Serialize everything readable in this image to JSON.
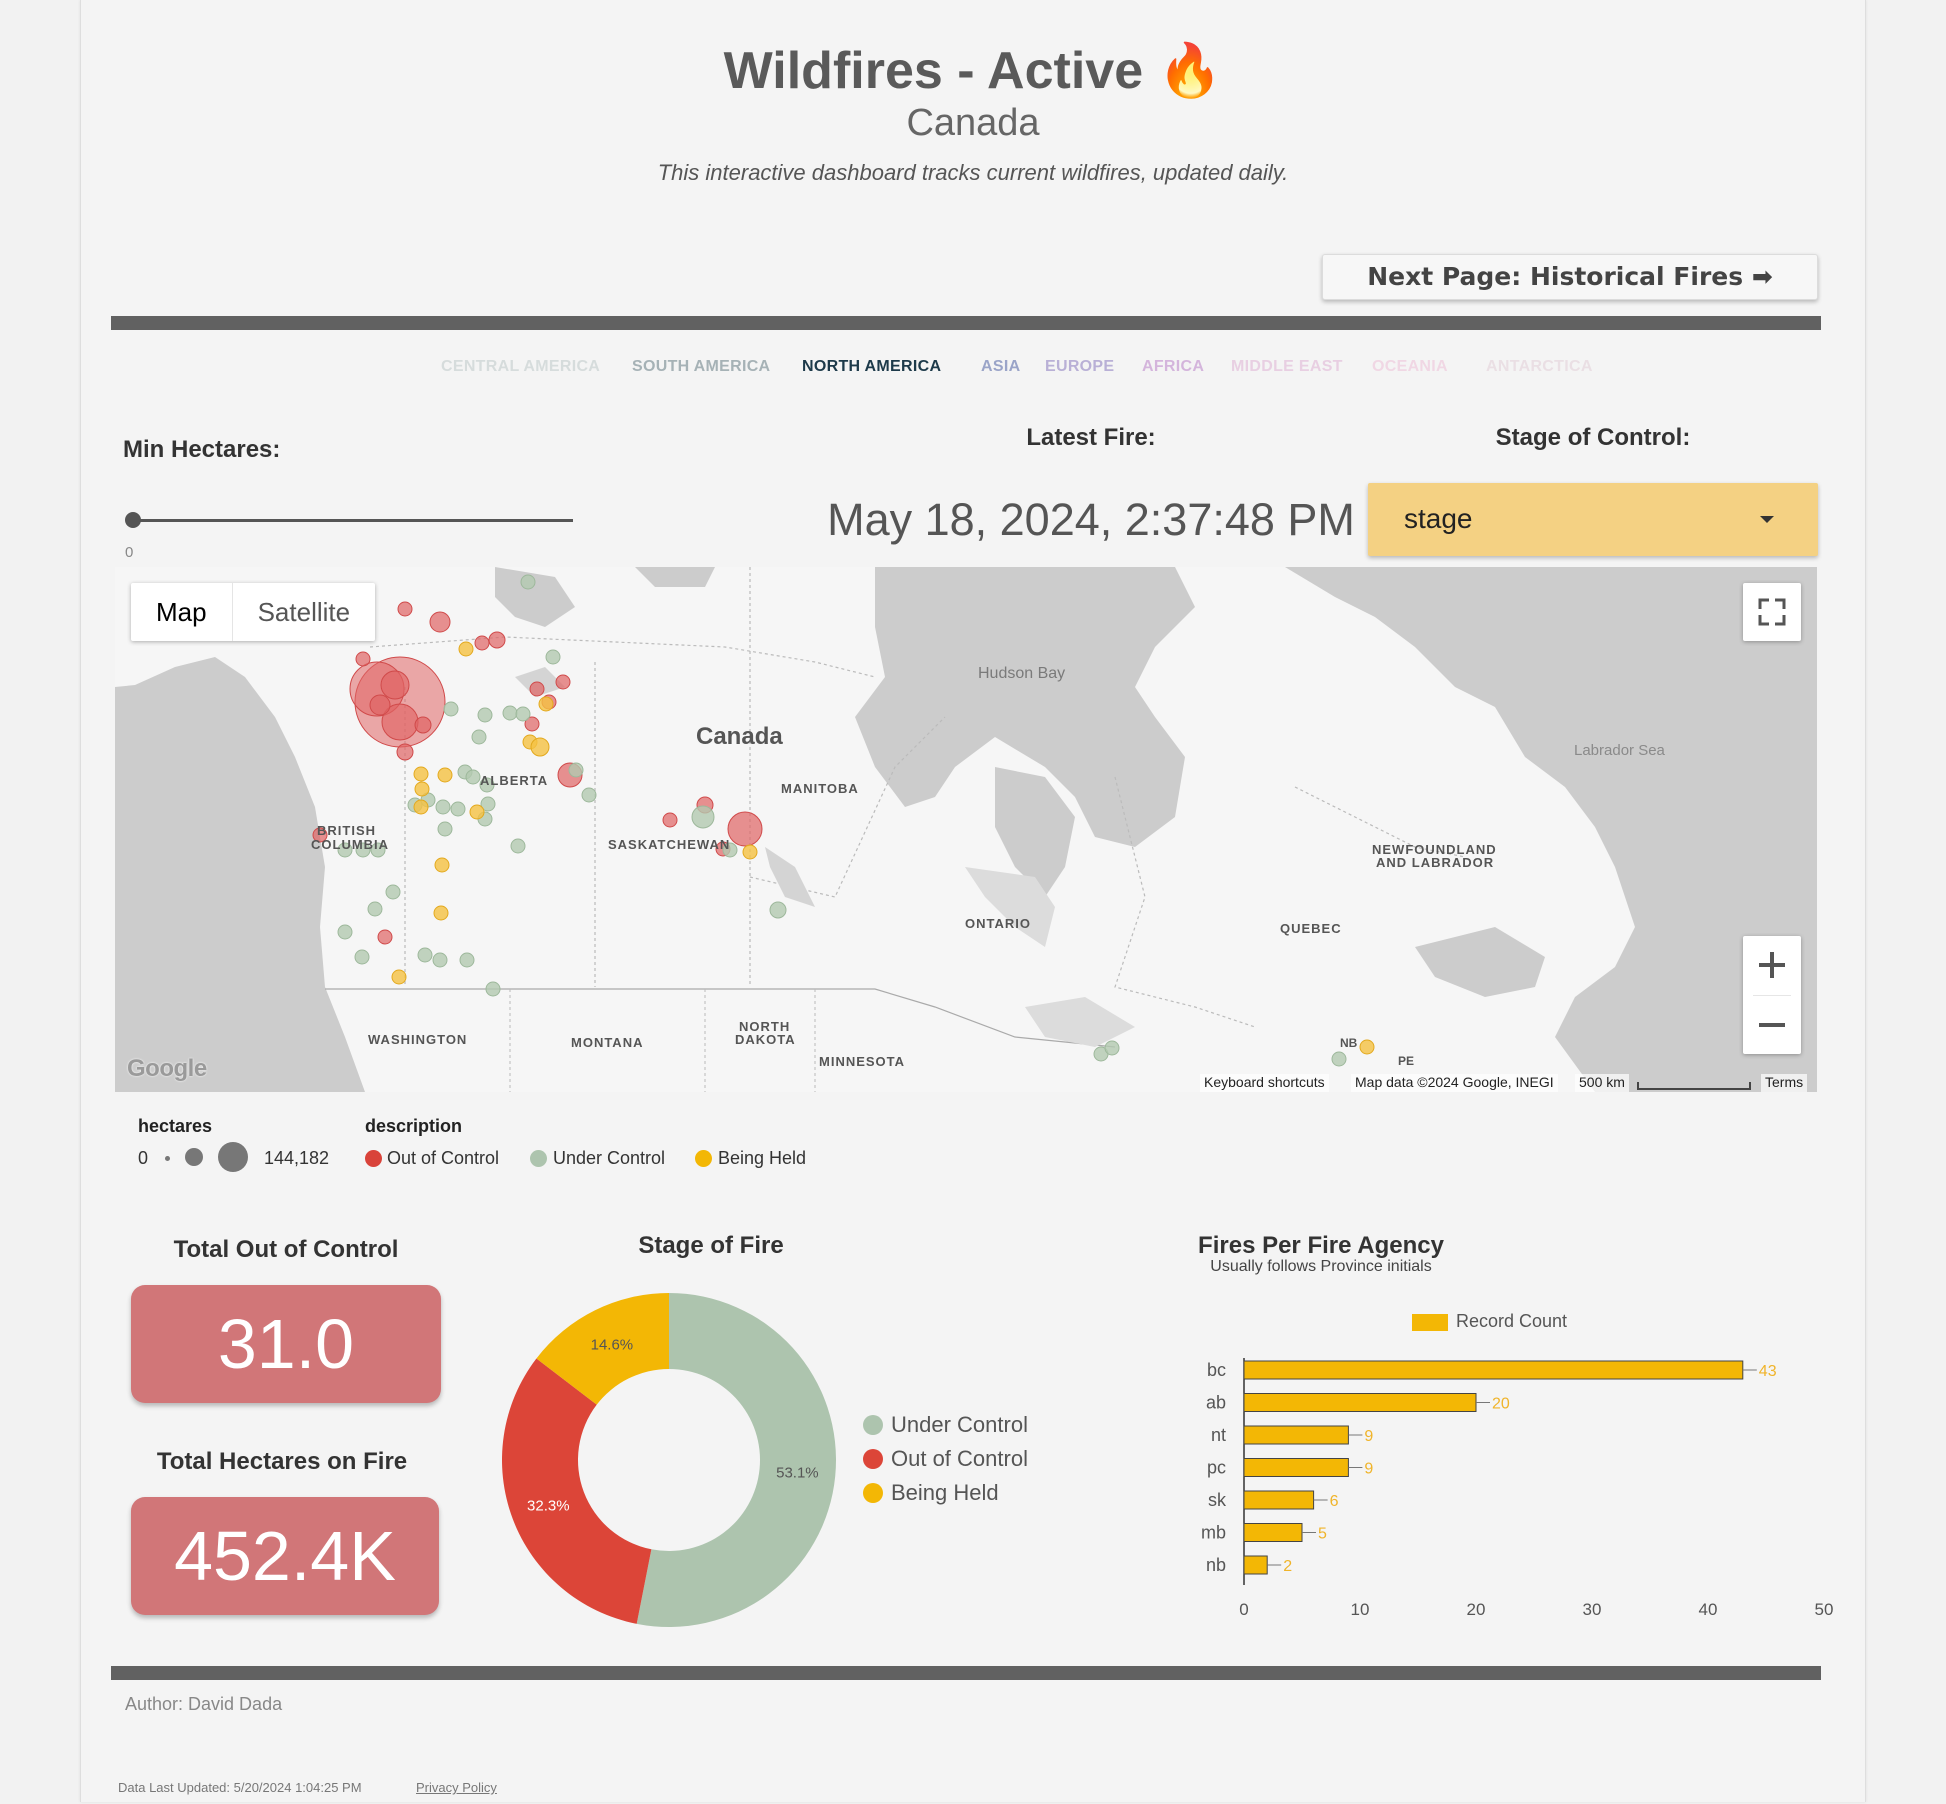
{
  "header": {
    "title": "Wildfires - Active 🔥",
    "subtitle": "Canada",
    "tagline": "This interactive dashboard tracks current wildfires, updated daily."
  },
  "nav": {
    "next_page_label": "Next Page: Historical Fires ➡",
    "continents": [
      {
        "label": "CENTRAL AMERICA",
        "color": "#d6dcdc"
      },
      {
        "label": "SOUTH AMERICA",
        "color": "#a6b2b6"
      },
      {
        "label": "NORTH AMERICA",
        "color": "#1d3a4a"
      },
      {
        "label": "ASIA",
        "color": "#9aa4c8"
      },
      {
        "label": "EUROPE",
        "color": "#b9b0d6"
      },
      {
        "label": "AFRICA",
        "color": "#d4b5dc"
      },
      {
        "label": "MIDDLE EAST",
        "color": "#e8cfe2"
      },
      {
        "label": "OCEANIA",
        "color": "#f0d7e4"
      },
      {
        "label": "ANTARCTICA",
        "color": "#eadfe4"
      }
    ]
  },
  "controls": {
    "min_hectares_label": "Min Hectares:",
    "min_hectares_value": "0",
    "latest_fire_label": "Latest Fire:",
    "latest_fire_value": "May 18, 2024, 2:37:48 PM",
    "stage_label": "Stage of Control:",
    "stage_value": "stage"
  },
  "map": {
    "type_map": "Map",
    "type_satellite": "Satellite",
    "google_logo": "Google",
    "keyboard_shortcuts": "Keyboard shortcuts",
    "map_data": "Map data ©2024 Google, INEGI",
    "scale": "500 km",
    "terms": "Terms",
    "labels": {
      "hudson_bay": "Hudson Bay",
      "labrador_sea": "Labrador Sea",
      "canada": "Canada",
      "manitoba": "MANITOBA",
      "alberta": "ALBERTA",
      "bc1": "BRITISH",
      "bc2": "COLUMBIA",
      "saskatchewan": "SASKATCHEWAN",
      "nl1": "NEWFOUNDLAND",
      "nl2": "AND LABRADOR",
      "ontario": "ONTARIO",
      "quebec": "QUEBEC",
      "washington": "WASHINGTON",
      "montana": "MONTANA",
      "nd1": "NORTH",
      "nd2": "DAKOTA",
      "minnesota": "MINNESOTA",
      "nb": "NB",
      "pe": "PE"
    },
    "colors": {
      "out_of_control": "#e06464",
      "under_control": "#b3c9b0",
      "being_held": "#f5c242"
    }
  },
  "legend": {
    "hectares_title": "hectares",
    "hectares_min": "0",
    "hectares_max": "144,182",
    "description_title": "description",
    "items": [
      {
        "label": "Out of Control",
        "color": "#d9433a"
      },
      {
        "label": "Under Control",
        "color": "#adc4ae"
      },
      {
        "label": "Being Held",
        "color": "#f3b705"
      }
    ]
  },
  "kpis": {
    "out_of_control_title": "Total Out of Control",
    "out_of_control_value": "31.0",
    "hectares_title": "Total Hectares on Fire",
    "hectares_value": "452.4K"
  },
  "chart_data": [
    {
      "type": "pie",
      "title": "Stage of Fire",
      "donut": true,
      "slices": [
        {
          "label": "Under Control",
          "value": 53.1,
          "display": "53.1%",
          "color": "#adc4ae"
        },
        {
          "label": "Out of Control",
          "value": 32.3,
          "display": "32.3%",
          "color": "#dc4538"
        },
        {
          "label": "Being Held",
          "value": 14.6,
          "display": "14.6%",
          "color": "#f3b705"
        }
      ],
      "legend_position": "right"
    },
    {
      "type": "bar",
      "orientation": "horizontal",
      "title": "Fires Per Fire Agency",
      "subtitle": "Usually follows Province initials",
      "series": [
        {
          "name": "Record Count",
          "color": "#f3b705"
        }
      ],
      "categories": [
        "bc",
        "ab",
        "nt",
        "pc",
        "sk",
        "mb",
        "nb"
      ],
      "values": [
        43,
        20,
        9,
        9,
        6,
        5,
        2
      ],
      "xlim": [
        0,
        50
      ],
      "xticks": [
        0,
        10,
        20,
        30,
        40,
        50
      ],
      "legend_position": "top",
      "grid": false
    }
  ],
  "footer": {
    "author": "Author: David Dada",
    "updated": "Data Last Updated: 5/20/2024 1:04:25 PM",
    "privacy": "Privacy Policy"
  }
}
